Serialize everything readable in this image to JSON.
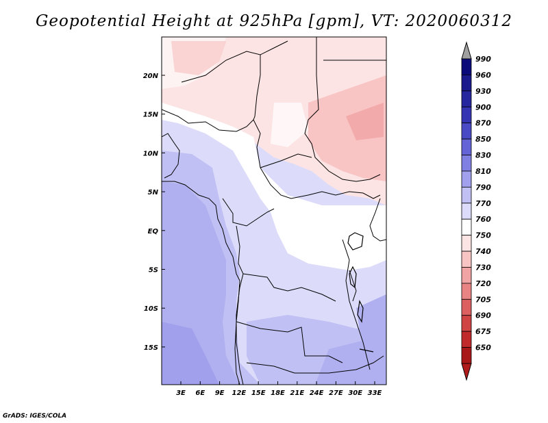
{
  "title": "Geopotential Height at 925hPa [gpm], VT: 2020060312",
  "footer": "GrADS: IGES/COLA",
  "lat_labels": [
    "20N",
    "15N",
    "10N",
    "5N",
    "EQ",
    "5S",
    "10S",
    "15S"
  ],
  "lon_labels": [
    "3E",
    "6E",
    "9E",
    "12E",
    "15E",
    "18E",
    "21E",
    "24E",
    "27E",
    "30E",
    "33E"
  ],
  "colorbar": [
    {
      "label": "990",
      "color": "#0a0a7a"
    },
    {
      "label": "960",
      "color": "#1a1a8c"
    },
    {
      "label": "930",
      "color": "#26269e"
    },
    {
      "label": "900",
      "color": "#3535b4"
    },
    {
      "label": "870",
      "color": "#4a4ac6"
    },
    {
      "label": "850",
      "color": "#6464d6"
    },
    {
      "label": "830",
      "color": "#8080e2"
    },
    {
      "label": "810",
      "color": "#a0a0ec"
    },
    {
      "label": "790",
      "color": "#c0c0f4"
    },
    {
      "label": "770",
      "color": "#dcdcfa"
    },
    {
      "label": "760",
      "color": "#ffffff"
    },
    {
      "label": "750",
      "color": "#fde4e4"
    },
    {
      "label": "740",
      "color": "#f8c4c4"
    },
    {
      "label": "730",
      "color": "#f0a4a4"
    },
    {
      "label": "720",
      "color": "#e88484"
    },
    {
      "label": "705",
      "color": "#dd6060"
    },
    {
      "label": "690",
      "color": "#d04444"
    },
    {
      "label": "675",
      "color": "#c02a2a"
    },
    {
      "label": "650",
      "color": "#a81818"
    }
  ],
  "colorbar_over_color": "#a0a0a0",
  "colorbar_under_color": "#b01c1c"
}
